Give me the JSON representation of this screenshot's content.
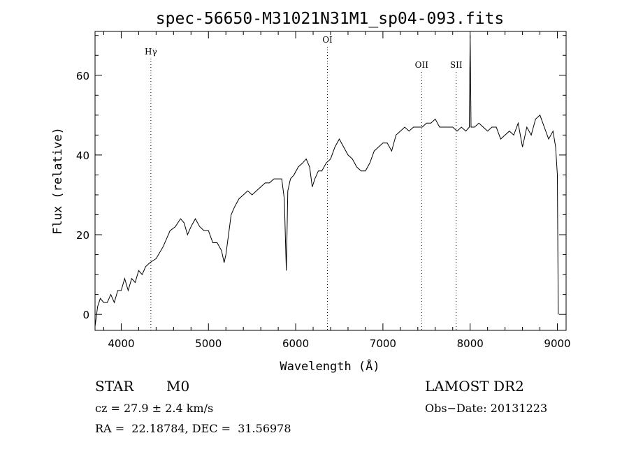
{
  "chart_data": {
    "type": "line",
    "title": "spec-56650-M31021N31M1_sp04-093.fits",
    "xlabel": "Wavelength (Å)",
    "ylabel": "Flux (relative)",
    "xlim": [
      3700,
      9100
    ],
    "ylim": [
      -4,
      71
    ],
    "xticks": [
      4000,
      5000,
      6000,
      7000,
      8000,
      9000
    ],
    "yticks": [
      0,
      20,
      40,
      60
    ],
    "grid": false,
    "lines": [
      {
        "label": "Hγ",
        "x": 4340
      },
      {
        "label": "OI",
        "x": 6364
      },
      {
        "label": "OII",
        "x": 7444
      },
      {
        "label": "SII",
        "x": 7840
      }
    ],
    "series": [
      {
        "x": [
          3700,
          3730,
          3760,
          3800,
          3840,
          3880,
          3920,
          3960,
          4000,
          4040,
          4080,
          4120,
          4160,
          4200,
          4240,
          4280,
          4330,
          4400,
          4480,
          4560,
          4620,
          4680,
          4720,
          4760,
          4800,
          4850,
          4900,
          4950,
          5000,
          5050,
          5100,
          5150,
          5180,
          5200,
          5230,
          5260,
          5300,
          5350,
          5400,
          5450,
          5500,
          5550,
          5600,
          5650,
          5700,
          5750,
          5800,
          5840,
          5870,
          5893,
          5910,
          5940,
          5980,
          6030,
          6080,
          6120,
          6160,
          6190,
          6220,
          6260,
          6300,
          6350,
          6400,
          6450,
          6500,
          6550,
          6600,
          6650,
          6700,
          6750,
          6800,
          6850,
          6900,
          6950,
          7000,
          7050,
          7100,
          7150,
          7200,
          7250,
          7300,
          7350,
          7400,
          7450,
          7500,
          7550,
          7600,
          7650,
          7700,
          7750,
          7800,
          7850,
          7900,
          7950,
          7990,
          8000,
          8010,
          8050,
          8100,
          8150,
          8200,
          8250,
          8300,
          8350,
          8400,
          8450,
          8500,
          8550,
          8600,
          8650,
          8700,
          8750,
          8800,
          8850,
          8900,
          8950,
          8980,
          9000,
          9010
        ],
        "y": [
          -3,
          2,
          4,
          3,
          3,
          5,
          3,
          6,
          6,
          9,
          6,
          9,
          8,
          11,
          10,
          12,
          13,
          14,
          17,
          21,
          22,
          24,
          23,
          20,
          22,
          24,
          22,
          21,
          21,
          18,
          18,
          16,
          13,
          15,
          20,
          25,
          27,
          29,
          30,
          31,
          30,
          31,
          32,
          33,
          33,
          34,
          34,
          34,
          29,
          11,
          31,
          34,
          35,
          37,
          38,
          39,
          37,
          32,
          34,
          36,
          36,
          38,
          39,
          42,
          44,
          42,
          40,
          39,
          37,
          36,
          36,
          38,
          41,
          42,
          43,
          43,
          41,
          45,
          46,
          47,
          46,
          47,
          47,
          47,
          48,
          48,
          49,
          47,
          47,
          47,
          47,
          46,
          47,
          46,
          47,
          70,
          47,
          47,
          48,
          47,
          46,
          47,
          47,
          44,
          45,
          46,
          45,
          48,
          42,
          47,
          45,
          49,
          50,
          47,
          44,
          46,
          42,
          35,
          0
        ]
      }
    ],
    "footer": {
      "object_class": "STAR",
      "subclass": "M0",
      "survey": "LAMOST DR2",
      "velocity": "cz = 27.9 ± 2.4 km/s",
      "obs_date": "Obs−Date: 20131223",
      "coords": "RA =  22.18784, DEC =  31.56978"
    }
  }
}
